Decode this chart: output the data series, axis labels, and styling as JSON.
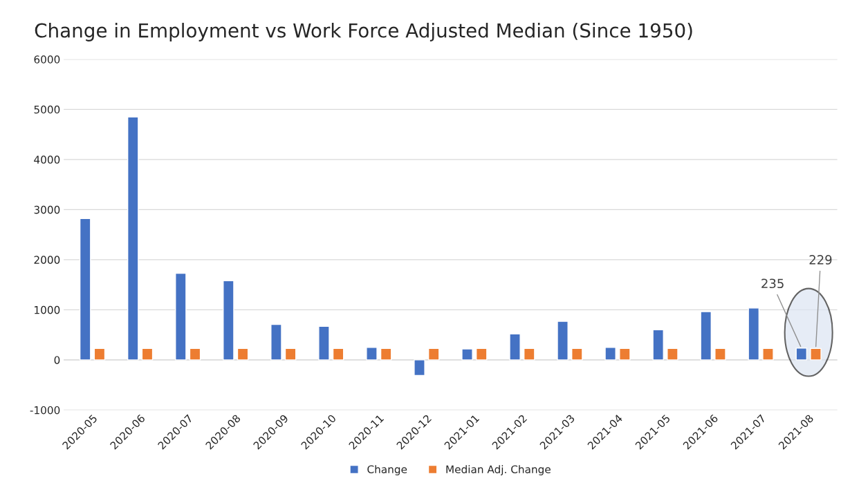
{
  "chart_data": {
    "type": "bar",
    "title": "Change in Employment vs Work Force Adjusted Median (Since 1950)",
    "categories": [
      "2020-05",
      "2020-06",
      "2020-07",
      "2020-08",
      "2020-09",
      "2020-10",
      "2020-11",
      "2020-12",
      "2021-01",
      "2021-02",
      "2021-03",
      "2021-04",
      "2021-05",
      "2021-06",
      "2021-07",
      "2021-08"
    ],
    "series": [
      {
        "name": "Change",
        "color": "#4472c4",
        "values": [
          2820,
          4850,
          1730,
          1580,
          710,
          670,
          250,
          -310,
          220,
          520,
          770,
          250,
          600,
          965,
          1035,
          235
        ],
        "value_labels": [
          null,
          null,
          null,
          null,
          null,
          null,
          null,
          null,
          null,
          null,
          null,
          null,
          null,
          null,
          null,
          "235"
        ]
      },
      {
        "name": "Median Adj. Change",
        "color": "#ed7d31",
        "values": [
          229,
          229,
          229,
          229,
          229,
          229,
          229,
          229,
          229,
          229,
          229,
          229,
          229,
          229,
          229,
          229
        ],
        "value_labels": [
          null,
          null,
          null,
          null,
          null,
          null,
          null,
          null,
          null,
          null,
          null,
          null,
          null,
          null,
          null,
          "229"
        ]
      }
    ],
    "ylim": [
      -1000,
      6000
    ],
    "yticks": [
      -1000,
      0,
      1000,
      2000,
      3000,
      4000,
      5000,
      6000
    ],
    "grid": "y",
    "legend": "bottom"
  }
}
